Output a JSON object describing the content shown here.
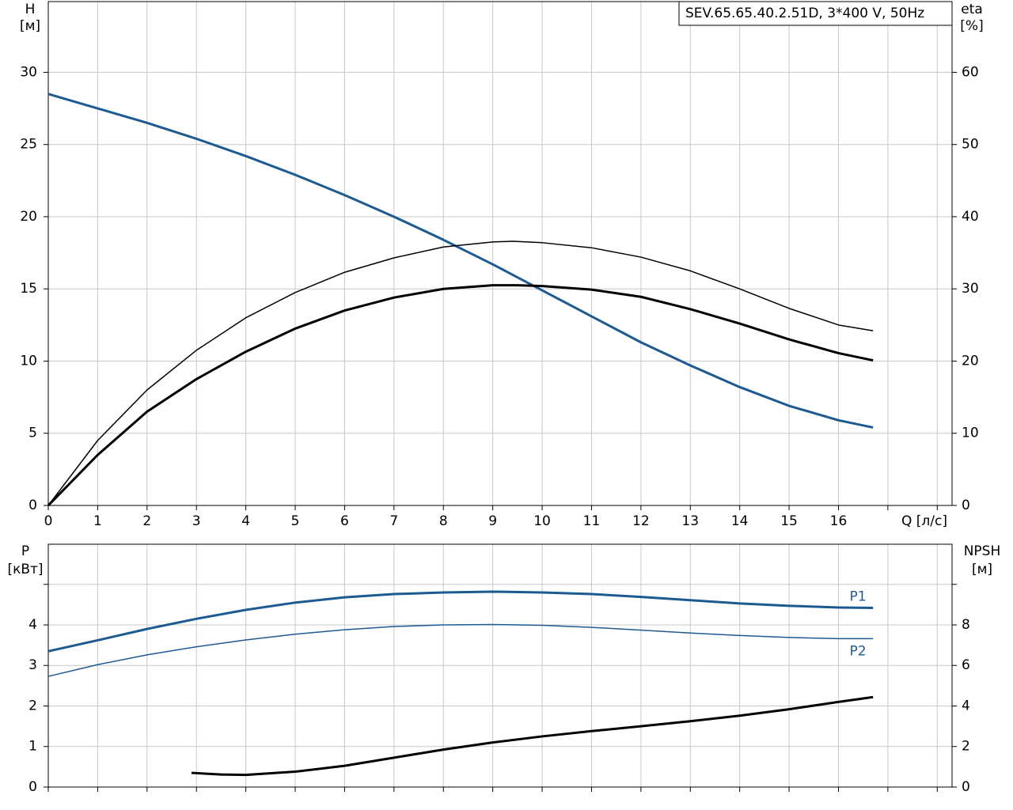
{
  "chart_data": [
    {
      "type": "line",
      "title": "SEV.65.65.40.2.51D, 3*400 V, 50Hz",
      "xlabel": "Q [л/с]",
      "ylabel": [
        "H",
        "[м]"
      ],
      "y2label": [
        "eta",
        "[%]"
      ],
      "xlim": [
        0,
        18.3
      ],
      "xticks": [
        0,
        1,
        2,
        3,
        4,
        5,
        6,
        7,
        8,
        9,
        10,
        11,
        12,
        13,
        14,
        15,
        16,
        {
          "value": 17,
          "label": null
        },
        {
          "value": 18,
          "label": null
        }
      ],
      "ylim": [
        0,
        34.9
      ],
      "yticks": [
        0,
        5,
        10,
        15,
        20,
        25,
        30
      ],
      "y2lim": [
        0,
        69.8
      ],
      "y2ticks": [
        0,
        10,
        20,
        30,
        40,
        50,
        60
      ],
      "grid": true,
      "show_xtick_labels": true,
      "series": [
        {
          "color": "#1d5a91",
          "linewidth": 3,
          "x": [
            0,
            1,
            2,
            3,
            4,
            5,
            6,
            7,
            8,
            9,
            10,
            11,
            12,
            13,
            14,
            15,
            16,
            16.7
          ],
          "values": [
            28.5,
            27.5,
            26.5,
            25.4,
            24.2,
            22.9,
            21.5,
            20.0,
            18.4,
            16.7,
            14.9,
            13.1,
            11.3,
            9.7,
            8.2,
            6.9,
            5.9,
            5.4
          ]
        },
        {
          "color": "#000000",
          "linewidth": 1.5,
          "axis": "y2",
          "x": [
            0,
            1,
            2,
            3,
            4,
            5,
            6,
            7,
            8,
            9,
            9.4,
            10,
            11,
            12,
            13,
            14,
            15,
            16,
            16.7
          ],
          "values": [
            0,
            9,
            16,
            21.5,
            26,
            29.5,
            32.3,
            34.3,
            35.8,
            36.5,
            36.6,
            36.4,
            35.7,
            34.4,
            32.5,
            30,
            27.3,
            25,
            24.2
          ]
        },
        {
          "color": "#000000",
          "linewidth": 3,
          "axis": "y2",
          "x": [
            0,
            1,
            2,
            3,
            4,
            5,
            6,
            7,
            8,
            9,
            9.5,
            10,
            11,
            12,
            13,
            14,
            15,
            16,
            16.7
          ],
          "values": [
            0,
            7,
            13,
            17.5,
            21.3,
            24.5,
            27,
            28.8,
            30,
            30.5,
            30.5,
            30.4,
            29.9,
            28.9,
            27.2,
            25.2,
            23,
            21.1,
            20.1
          ]
        }
      ]
    },
    {
      "type": "line",
      "ylabel": [
        "P",
        "[кВт]"
      ],
      "y2label": [
        "NPSH",
        "[м]"
      ],
      "xlim": [
        0,
        18.3
      ],
      "xticks": [
        0,
        1,
        2,
        3,
        4,
        5,
        6,
        7,
        8,
        9,
        10,
        11,
        12,
        13,
        14,
        15,
        16,
        17,
        18
      ],
      "ylim": [
        0,
        5.99
      ],
      "yticks": [
        0,
        1,
        2,
        3,
        4,
        {
          "value": 5,
          "label": null
        }
      ],
      "y2lim": [
        0,
        11.98
      ],
      "y2ticks": [
        0,
        2,
        4,
        6,
        8,
        {
          "value": 10,
          "label": null
        }
      ],
      "grid": true,
      "show_xtick_labels": false,
      "series": [
        {
          "name": "P1",
          "color": "#1d5a91",
          "linewidth": 3,
          "x": [
            0,
            1,
            2,
            3,
            4,
            5,
            6,
            7,
            8,
            9,
            10,
            11,
            12,
            13,
            14,
            15,
            16,
            16.7
          ],
          "values": [
            3.35,
            3.62,
            3.9,
            4.15,
            4.37,
            4.55,
            4.68,
            4.76,
            4.8,
            4.82,
            4.8,
            4.76,
            4.69,
            4.61,
            4.53,
            4.47,
            4.43,
            4.42
          ]
        },
        {
          "name": "P2",
          "color": "#1d5a91",
          "linewidth": 1.5,
          "x": [
            0,
            1,
            2,
            3,
            4,
            5,
            6,
            7,
            8,
            9,
            10,
            11,
            12,
            13,
            14,
            15,
            16,
            16.7
          ],
          "values": [
            2.73,
            3.02,
            3.26,
            3.46,
            3.63,
            3.77,
            3.88,
            3.96,
            4.0,
            4.01,
            3.99,
            3.94,
            3.87,
            3.8,
            3.74,
            3.69,
            3.66,
            3.66
          ]
        },
        {
          "color": "#000000",
          "linewidth": 3,
          "axis": "y2",
          "x": [
            2.9,
            3.5,
            4,
            5,
            6,
            7,
            8,
            9,
            10,
            11,
            12,
            13,
            14,
            15,
            16,
            16.7
          ],
          "values": [
            0.7,
            0.62,
            0.6,
            0.76,
            1.05,
            1.45,
            1.85,
            2.2,
            2.5,
            2.76,
            3.0,
            3.25,
            3.52,
            3.84,
            4.2,
            4.44
          ]
        }
      ]
    }
  ]
}
